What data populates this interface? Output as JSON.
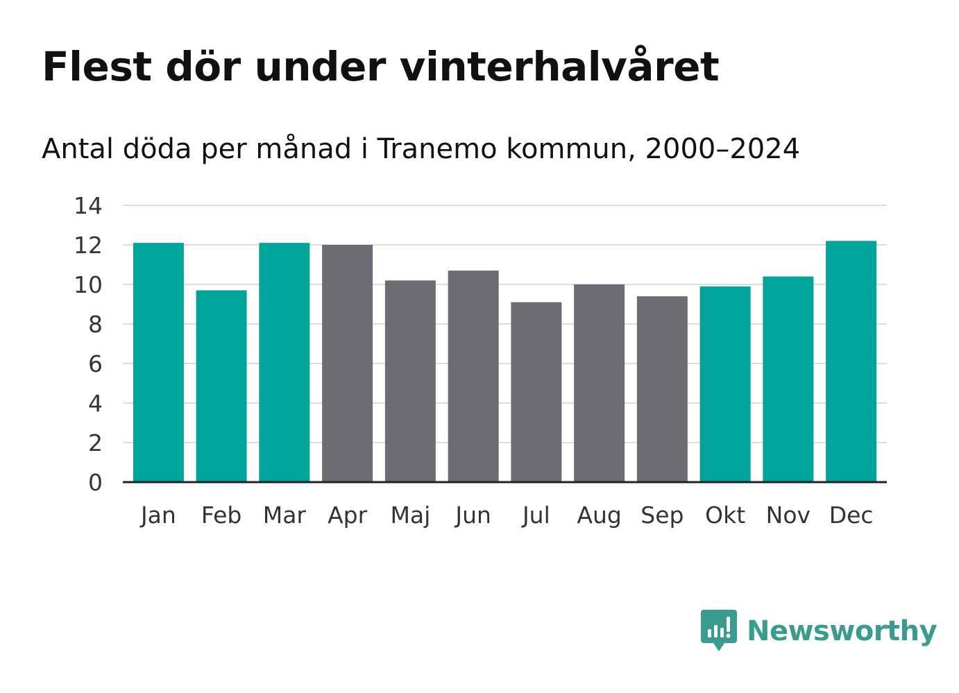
{
  "header": {
    "title": "Flest dör under vinterhalvåret",
    "subtitle": "Antal döda per månad i Tranemo kommun, 2000–2024"
  },
  "brand": {
    "name": "Newsworthy",
    "icon": "newsworthy-logo-icon",
    "color": "#3a9c8f"
  },
  "colors": {
    "highlight": "#00a49a",
    "muted": "#6d6c72",
    "grid": "#dddddd",
    "axis": "#222222"
  },
  "chart_data": {
    "type": "bar",
    "title": "Flest dör under vinterhalvåret",
    "subtitle": "Antal döda per månad i Tranemo kommun, 2000–2024",
    "xlabel": "",
    "ylabel": "",
    "ylim": [
      0,
      14
    ],
    "yticks": [
      0,
      2,
      4,
      6,
      8,
      10,
      12,
      14
    ],
    "grid": true,
    "categories": [
      "Jan",
      "Feb",
      "Mar",
      "Apr",
      "Maj",
      "Jun",
      "Jul",
      "Aug",
      "Sep",
      "Okt",
      "Nov",
      "Dec"
    ],
    "values": [
      12.1,
      9.7,
      12.1,
      12.0,
      10.2,
      10.7,
      9.1,
      10.0,
      9.4,
      9.9,
      10.4,
      12.2
    ],
    "highlight": [
      true,
      true,
      true,
      false,
      false,
      false,
      false,
      false,
      false,
      true,
      true,
      true
    ]
  }
}
